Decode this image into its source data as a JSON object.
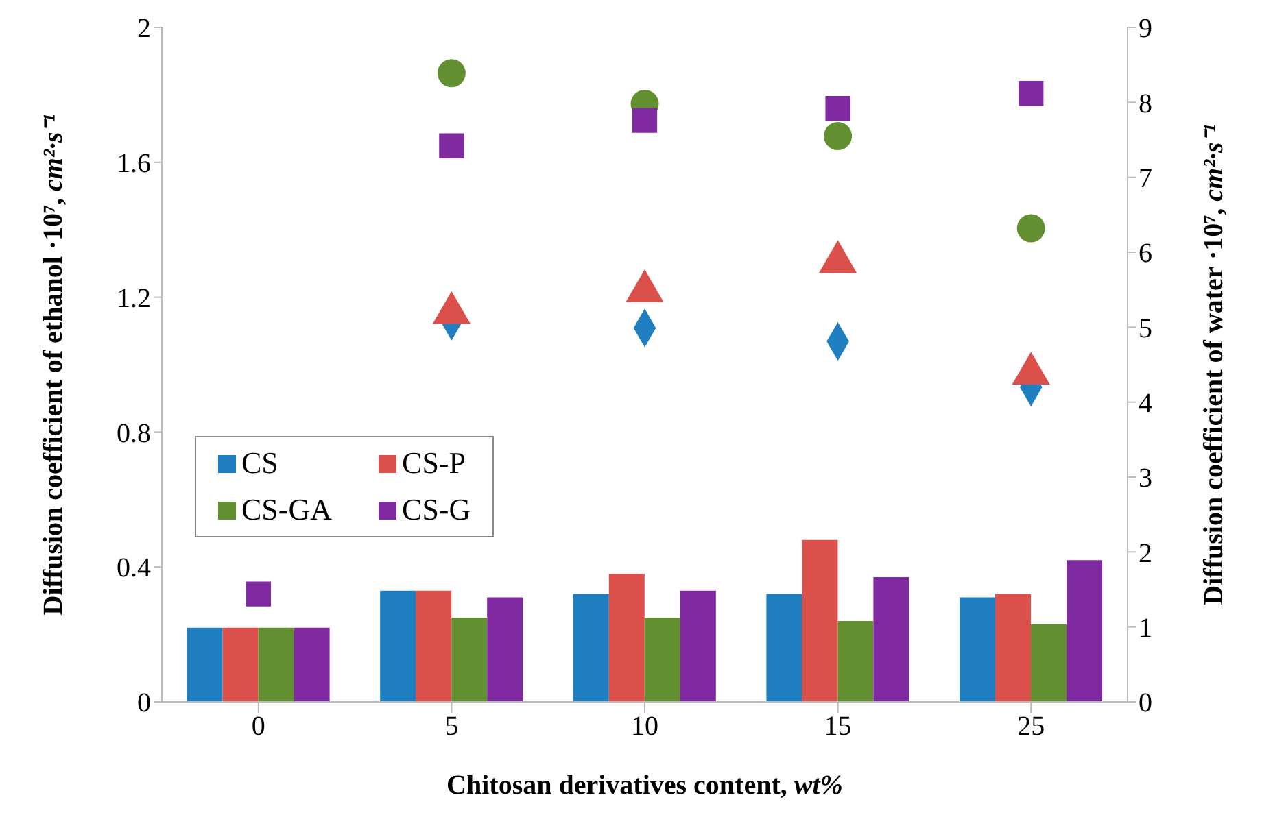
{
  "chart_data": {
    "type": "bar",
    "categories": [
      "0",
      "5",
      "10",
      "15",
      "25"
    ],
    "xlabel": "Chitosan derivatives content, wt%",
    "ylabel": "Diffusion coefficient of ethanol ·10⁷, cm²·s⁻¹",
    "y2label": "Diffusion coefficient of water ·10⁷, cm²·s⁻¹",
    "ylim": [
      0,
      2
    ],
    "yticks": [
      0,
      0.4,
      0.8,
      1.2,
      1.6,
      2
    ],
    "y2lim": [
      0,
      9
    ],
    "y2ticks": [
      0,
      1,
      2,
      3,
      4,
      5,
      6,
      7,
      8,
      9
    ],
    "grid": false,
    "legend": "left",
    "series": [
      {
        "name": "CS",
        "color": "#1f7fc0",
        "values": [
          0.22,
          0.33,
          0.32,
          0.32,
          0.31
        ]
      },
      {
        "name": "CS-P",
        "color": "#dc504b",
        "values": [
          0.22,
          0.33,
          0.38,
          0.48,
          0.32
        ]
      },
      {
        "name": "CS-GA",
        "color": "#628f30",
        "values": [
          0.22,
          0.25,
          0.25,
          0.24,
          0.23
        ]
      },
      {
        "name": "CS-G",
        "color": "#7f2aa0",
        "values": [
          0.22,
          0.31,
          0.33,
          0.37,
          0.42
        ]
      },
      {
        "type": "scatter",
        "axis": "y2",
        "marker": "diamond",
        "color": "#1f7fc0",
        "values": [
          null,
          5.08,
          4.99,
          4.81,
          4.2
        ]
      },
      {
        "type": "scatter",
        "axis": "y2",
        "marker": "triangle",
        "color": "#dc504b",
        "values": [
          null,
          5.19,
          5.48,
          5.87,
          4.38
        ]
      },
      {
        "type": "scatter",
        "axis": "y2",
        "marker": "circle",
        "color": "#628f30",
        "values": [
          null,
          8.39,
          7.98,
          7.55,
          6.32
        ]
      },
      {
        "type": "scatter",
        "axis": "y2",
        "marker": "square",
        "color": "#7f2aa0",
        "values": [
          1.44,
          7.42,
          7.76,
          7.92,
          8.12
        ]
      }
    ]
  }
}
